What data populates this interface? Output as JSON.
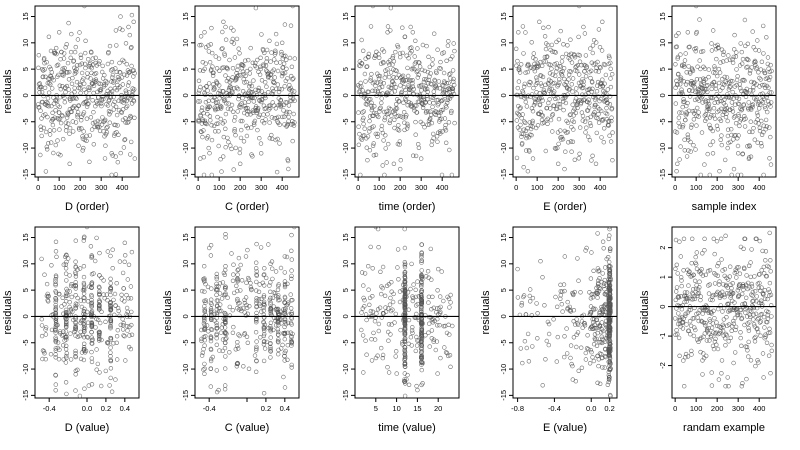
{
  "figure": {
    "ylabel": "residuals",
    "point_color": "#555555",
    "axis_color": "#000000",
    "zero_line_color": "#000000"
  },
  "chart_data": [
    {
      "type": "scatter",
      "xlabel": "D (order)",
      "ylabel": "residuals",
      "xlim": [
        -15,
        480
      ],
      "ylim": [
        -15.5,
        17
      ],
      "xticks": [
        0,
        100,
        200,
        300,
        400
      ],
      "xtick_labels": [
        "0",
        "100",
        "200",
        "300",
        "400"
      ],
      "yticks": [
        -15,
        -10,
        -5,
        0,
        5,
        10,
        15
      ],
      "ytick_labels": [
        "-15",
        "-10",
        "-5",
        "0",
        "5",
        "10",
        "15"
      ],
      "hline": 0,
      "sample_points": [
        [
          60,
          5
        ],
        [
          100,
          12
        ],
        [
          150,
          -13
        ],
        [
          215,
          -10
        ],
        [
          220,
          17
        ],
        [
          260,
          7
        ],
        [
          330,
          -6
        ],
        [
          350,
          -11
        ],
        [
          370,
          -15
        ],
        [
          430,
          13
        ],
        [
          455,
          14
        ],
        [
          460,
          -12
        ]
      ]
    },
    {
      "type": "scatter",
      "xlabel": "C (order)",
      "ylabel": "residuals",
      "xlim": [
        -15,
        480
      ],
      "ylim": [
        -15.5,
        17
      ],
      "xticks": [
        0,
        100,
        200,
        300,
        400
      ],
      "xtick_labels": [
        "0",
        "100",
        "200",
        "300",
        "400"
      ],
      "yticks": [
        -15,
        -10,
        -5,
        0,
        5,
        10,
        15
      ],
      "ytick_labels": [
        "-15",
        "-10",
        "-5",
        "0",
        "5",
        "10",
        "15"
      ],
      "hline": 0,
      "sample_points": [
        [
          10,
          -12
        ],
        [
          30,
          12
        ],
        [
          50,
          -10
        ],
        [
          120,
          14
        ],
        [
          130,
          13
        ],
        [
          200,
          -13
        ],
        [
          250,
          9
        ],
        [
          300,
          -11
        ],
        [
          400,
          10
        ],
        [
          450,
          17
        ],
        [
          460,
          7
        ]
      ]
    },
    {
      "type": "scatter",
      "xlabel": "time (order)",
      "ylabel": "residuals",
      "xlim": [
        -15,
        480
      ],
      "ylim": [
        -15.5,
        17
      ],
      "xticks": [
        0,
        100,
        200,
        300,
        400
      ],
      "xtick_labels": [
        "0",
        "100",
        "200",
        "300",
        "400"
      ],
      "yticks": [
        -15,
        -10,
        -5,
        0,
        5,
        10,
        15
      ],
      "ytick_labels": [
        "-15",
        "-10",
        "-5",
        "0",
        "5",
        "10",
        "15"
      ],
      "hline": 0,
      "sample_points": [
        [
          70,
          17
        ],
        [
          140,
          12
        ],
        [
          170,
          -13
        ],
        [
          200,
          -14
        ],
        [
          250,
          13
        ],
        [
          260,
          12
        ],
        [
          300,
          -12
        ],
        [
          400,
          8
        ]
      ]
    },
    {
      "type": "scatter",
      "xlabel": "E (order)",
      "ylabel": "residuals",
      "xlim": [
        -15,
        480
      ],
      "ylim": [
        -15.5,
        17
      ],
      "xticks": [
        0,
        100,
        200,
        300,
        400
      ],
      "xtick_labels": [
        "0",
        "100",
        "200",
        "300",
        "400"
      ],
      "yticks": [
        -15,
        -10,
        -5,
        0,
        5,
        10,
        15
      ],
      "ytick_labels": [
        "-15",
        "-10",
        "-5",
        "0",
        "5",
        "10",
        "15"
      ],
      "hline": 0,
      "sample_points": [
        [
          10,
          12
        ],
        [
          80,
          -12
        ],
        [
          110,
          14
        ],
        [
          200,
          -13
        ],
        [
          230,
          -14
        ],
        [
          300,
          17
        ],
        [
          320,
          13
        ],
        [
          380,
          -13
        ],
        [
          410,
          14
        ]
      ]
    },
    {
      "type": "scatter",
      "xlabel": "sample index",
      "ylabel": "residuals",
      "xlim": [
        -15,
        480
      ],
      "ylim": [
        -15.5,
        17
      ],
      "xticks": [
        0,
        100,
        200,
        300,
        400
      ],
      "xtick_labels": [
        "0",
        "100",
        "200",
        "300",
        "400"
      ],
      "yticks": [
        -15,
        -10,
        -5,
        0,
        5,
        10,
        15
      ],
      "ytick_labels": [
        "-15",
        "-10",
        "-5",
        "0",
        "5",
        "10",
        "15"
      ],
      "hline": 0,
      "sample_points": [
        [
          10,
          -13
        ],
        [
          60,
          12
        ],
        [
          100,
          17
        ],
        [
          180,
          -11
        ],
        [
          250,
          -10
        ],
        [
          280,
          -14
        ],
        [
          300,
          -11
        ],
        [
          420,
          8
        ]
      ]
    },
    {
      "type": "scatter",
      "xlabel": "D (value)",
      "ylabel": "residuals",
      "xlim": [
        -0.55,
        0.55
      ],
      "ylim": [
        -15.5,
        17
      ],
      "xticks": [
        -0.4,
        0.0,
        0.2,
        0.4
      ],
      "xtick_labels": [
        "-0.4",
        "0.0",
        "0.2",
        "0.4"
      ],
      "yticks": [
        -15,
        -10,
        -5,
        0,
        5,
        10,
        15
      ],
      "ytick_labels": [
        "-15",
        "-10",
        "-5",
        "0",
        "5",
        "10",
        "15"
      ],
      "hline": 0,
      "stripes": [
        -0.33,
        -0.22,
        -0.12,
        -0.03,
        0.05,
        0.13,
        0.25
      ],
      "sample_points": [
        [
          -0.12,
          -11
        ],
        [
          0.0,
          17
        ],
        [
          0.4,
          14
        ],
        [
          -0.45,
          -7
        ],
        [
          0.3,
          -12
        ]
      ]
    },
    {
      "type": "scatter",
      "xlabel": "C (value)",
      "ylabel": "residuals",
      "xlim": [
        -0.55,
        0.55
      ],
      "ylim": [
        -15.5,
        17
      ],
      "xticks": [
        -0.4,
        0.0,
        0.2,
        0.4
      ],
      "xtick_labels": [
        "-0.4",
        "",
        "0.2",
        "0.4"
      ],
      "yticks": [
        -15,
        -10,
        -5,
        0,
        5,
        10,
        15
      ],
      "ytick_labels": [
        "-15",
        "-10",
        "-5",
        "0",
        "5",
        "10",
        "15"
      ],
      "hline": 0,
      "stripes": [
        -0.45,
        -0.38,
        -0.32,
        -0.23,
        -0.1,
        0.1,
        0.18,
        0.25,
        0.33,
        0.4,
        0.47
      ],
      "sample_points": [
        [
          -0.4,
          13
        ],
        [
          -0.3,
          -14
        ],
        [
          0.25,
          10
        ],
        [
          0.5,
          17
        ]
      ]
    },
    {
      "type": "scatter",
      "xlabel": "time (value)",
      "ylabel": "residuals",
      "xlim": [
        0,
        25
      ],
      "ylim": [
        -15.5,
        17
      ],
      "xticks": [
        5,
        10,
        15,
        20
      ],
      "xtick_labels": [
        "5",
        "10",
        "15",
        "20"
      ],
      "yticks": [
        -15,
        -10,
        -5,
        0,
        5,
        10,
        15
      ],
      "ytick_labels": [
        "-15",
        "-10",
        "-5",
        "0",
        "5",
        "10",
        "15"
      ],
      "hline": 0,
      "stripes": [
        12,
        16
      ],
      "sample_points": [
        [
          5,
          17
        ],
        [
          12,
          13
        ],
        [
          13,
          -13
        ],
        [
          15,
          -14
        ],
        [
          20,
          9
        ]
      ]
    },
    {
      "type": "scatter",
      "xlabel": "E (value)",
      "ylabel": "residuals",
      "xlim": [
        -0.85,
        0.28
      ],
      "ylim": [
        -15.5,
        17
      ],
      "xticks": [
        -0.8,
        -0.4,
        0.0,
        0.2
      ],
      "xtick_labels": [
        "-0.8",
        "-0.4",
        "0.0",
        "0.2"
      ],
      "yticks": [
        -15,
        -10,
        -5,
        0,
        5,
        10,
        15
      ],
      "ytick_labels": [
        "-15",
        "-10",
        "-5",
        "0",
        "5",
        "10",
        "15"
      ],
      "hline": 0,
      "dense_column": 0.2,
      "sample_points": [
        [
          -0.8,
          9
        ],
        [
          -0.7,
          -6
        ],
        [
          -0.2,
          -12
        ],
        [
          -0.05,
          13
        ],
        [
          0.2,
          17
        ],
        [
          0.18,
          -13
        ]
      ]
    },
    {
      "type": "scatter",
      "xlabel": "randam example",
      "ylabel": "residuals",
      "xlim": [
        -15,
        480
      ],
      "ylim": [
        -3.1,
        2.7
      ],
      "xticks": [
        0,
        100,
        200,
        300,
        400
      ],
      "xtick_labels": [
        "0",
        "100",
        "200",
        "300",
        "400"
      ],
      "yticks": [
        -2,
        -1,
        0,
        1,
        2
      ],
      "ytick_labels": [
        "-2",
        "-1",
        "0",
        "1",
        "2"
      ],
      "hline": 0,
      "sample_points": [
        [
          20,
          2.2
        ],
        [
          130,
          -2.3
        ],
        [
          240,
          2.4
        ],
        [
          250,
          -2.4
        ],
        [
          320,
          -2.6
        ],
        [
          330,
          2.3
        ],
        [
          450,
          2.5
        ],
        [
          460,
          -1.5
        ]
      ]
    }
  ]
}
